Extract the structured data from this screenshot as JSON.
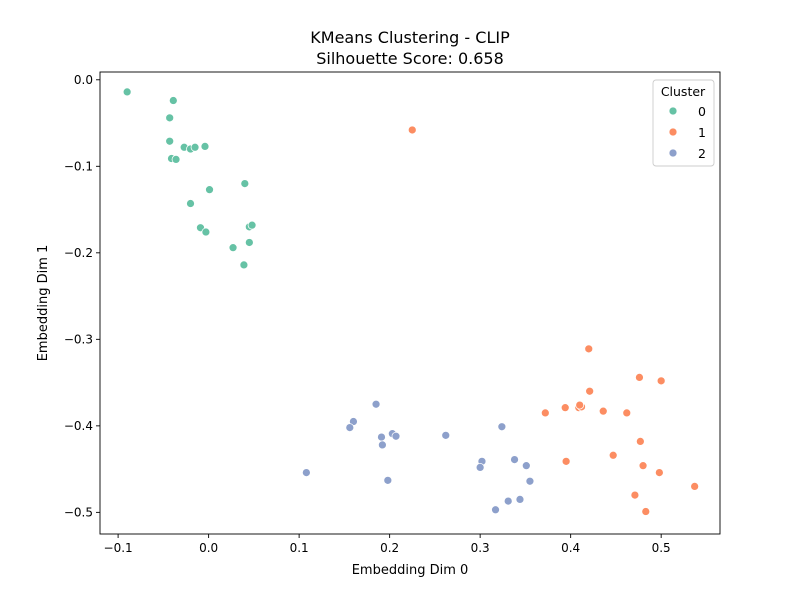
{
  "chart_data": {
    "type": "scatter",
    "title": "KMeans Clustering - CLIP",
    "subtitle": "Silhouette Score: 0.658",
    "xlabel": "Embedding Dim 0",
    "ylabel": "Embedding Dim 1",
    "xlim": [
      -0.12,
      0.565
    ],
    "ylim": [
      -0.525,
      0.009
    ],
    "xticks": [
      -0.1,
      0.0,
      0.1,
      0.2,
      0.3,
      0.4,
      0.5
    ],
    "xtick_labels": [
      "−0.1",
      "0.0",
      "0.1",
      "0.2",
      "0.3",
      "0.4",
      "0.5"
    ],
    "yticks": [
      0.0,
      -0.1,
      -0.2,
      -0.3,
      -0.4,
      -0.5
    ],
    "ytick_labels": [
      "0.0",
      "−0.1",
      "−0.2",
      "−0.3",
      "−0.4",
      "−0.5"
    ],
    "grid": false,
    "legend": {
      "title": "Cluster",
      "placement": "top-right"
    },
    "series": [
      {
        "name": "0",
        "color": "#66c2a5",
        "points": [
          [
            -0.09,
            -0.014
          ],
          [
            -0.039,
            -0.024
          ],
          [
            -0.043,
            -0.044
          ],
          [
            -0.043,
            -0.071
          ],
          [
            -0.027,
            -0.078
          ],
          [
            -0.02,
            -0.08
          ],
          [
            -0.015,
            -0.078
          ],
          [
            -0.004,
            -0.077
          ],
          [
            -0.041,
            -0.091
          ],
          [
            -0.036,
            -0.092
          ],
          [
            0.001,
            -0.127
          ],
          [
            0.04,
            -0.12
          ],
          [
            -0.02,
            -0.143
          ],
          [
            -0.009,
            -0.171
          ],
          [
            -0.003,
            -0.176
          ],
          [
            0.045,
            -0.17
          ],
          [
            0.048,
            -0.168
          ],
          [
            0.027,
            -0.194
          ],
          [
            0.045,
            -0.188
          ],
          [
            0.039,
            -0.214
          ]
        ]
      },
      {
        "name": "1",
        "color": "#fc8d62",
        "points": [
          [
            0.225,
            -0.058
          ],
          [
            0.42,
            -0.311
          ],
          [
            0.421,
            -0.36
          ],
          [
            0.476,
            -0.344
          ],
          [
            0.5,
            -0.348
          ],
          [
            0.372,
            -0.385
          ],
          [
            0.394,
            -0.379
          ],
          [
            0.409,
            -0.379
          ],
          [
            0.412,
            -0.378
          ],
          [
            0.41,
            -0.376
          ],
          [
            0.436,
            -0.383
          ],
          [
            0.462,
            -0.385
          ],
          [
            0.477,
            -0.418
          ],
          [
            0.447,
            -0.434
          ],
          [
            0.395,
            -0.441
          ],
          [
            0.48,
            -0.446
          ],
          [
            0.498,
            -0.454
          ],
          [
            0.537,
            -0.47
          ],
          [
            0.471,
            -0.48
          ],
          [
            0.483,
            -0.499
          ]
        ]
      },
      {
        "name": "2",
        "color": "#8da0cb",
        "points": [
          [
            0.185,
            -0.375
          ],
          [
            0.16,
            -0.395
          ],
          [
            0.156,
            -0.402
          ],
          [
            0.203,
            -0.409
          ],
          [
            0.191,
            -0.413
          ],
          [
            0.207,
            -0.412
          ],
          [
            0.192,
            -0.422
          ],
          [
            0.262,
            -0.411
          ],
          [
            0.324,
            -0.401
          ],
          [
            0.302,
            -0.441
          ],
          [
            0.3,
            -0.448
          ],
          [
            0.338,
            -0.439
          ],
          [
            0.351,
            -0.446
          ],
          [
            0.108,
            -0.454
          ],
          [
            0.198,
            -0.463
          ],
          [
            0.355,
            -0.464
          ],
          [
            0.344,
            -0.485
          ],
          [
            0.331,
            -0.487
          ],
          [
            0.317,
            -0.497
          ]
        ]
      }
    ]
  }
}
